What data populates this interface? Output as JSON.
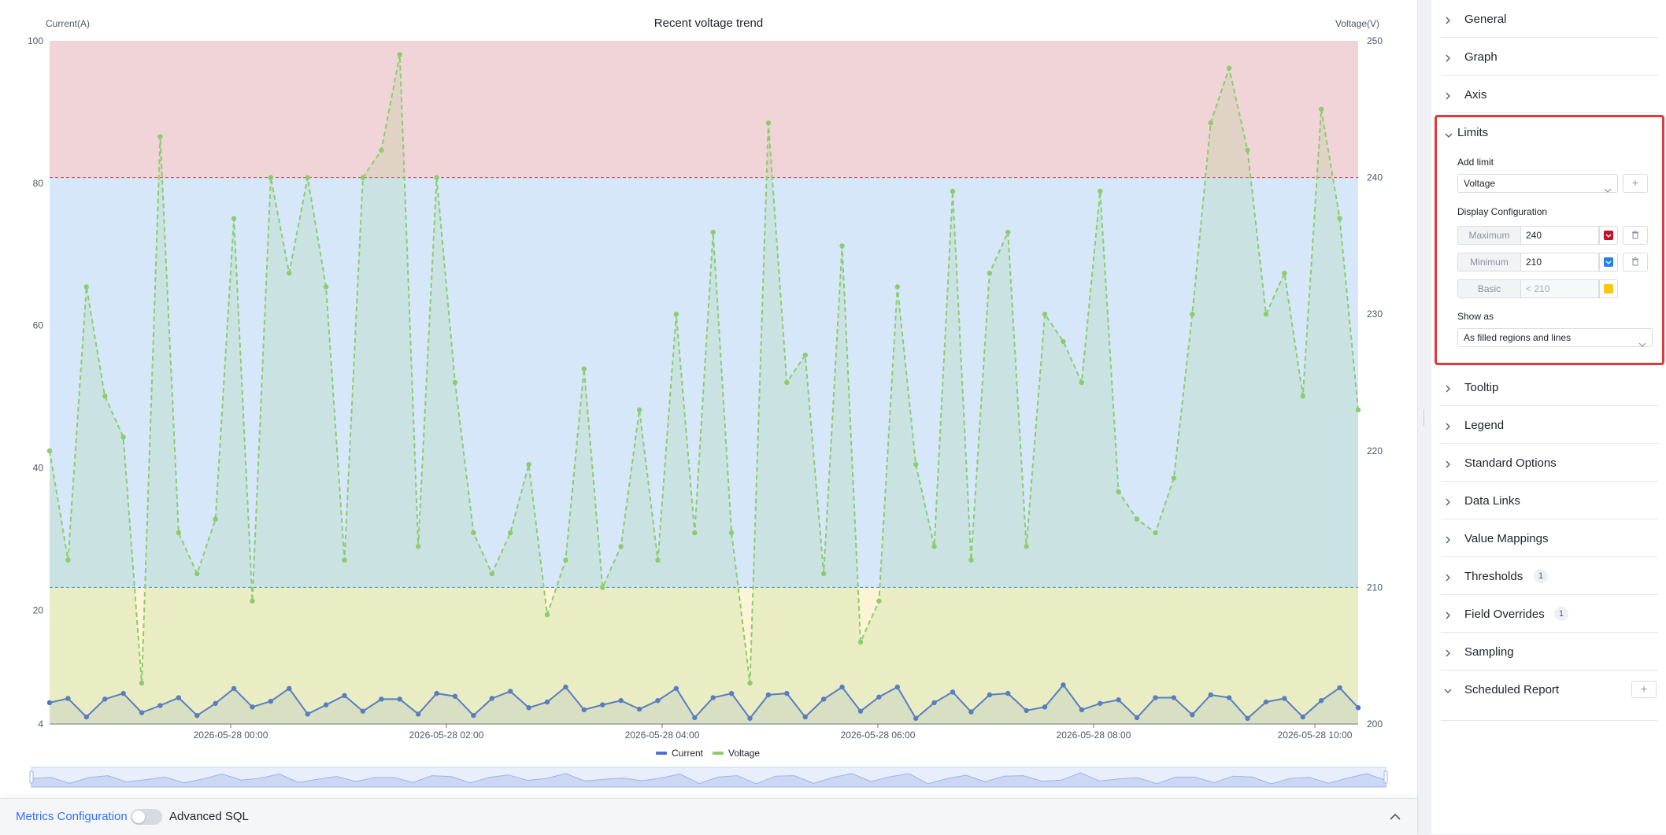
{
  "chart_data": {
    "type": "line",
    "title": "Recent voltage trend",
    "y_left_label": "Current(A)",
    "y_right_label": "Voltage(V)",
    "y_left_range": [
      4,
      100
    ],
    "y_left_ticks": [
      "4",
      "20",
      "40",
      "60",
      "80",
      "100"
    ],
    "y_right_range": [
      200,
      250
    ],
    "y_right_ticks": [
      "200",
      "210",
      "220",
      "230",
      "240",
      "250"
    ],
    "x_tick_labels": [
      "2026-05-28 00:00",
      "2026-05-28 02:00",
      "2026-05-28 04:00",
      "2026-05-28 06:00",
      "2026-05-28 08:00",
      "2026-05-28 10:00"
    ],
    "limits": {
      "max": 240,
      "min": 210
    },
    "legend_position": "bottom-center",
    "series": [
      {
        "name": "Current",
        "axis": "left",
        "color": "#4e6fd1",
        "values": [
          7,
          7.6,
          5,
          7.5,
          8.3,
          5.6,
          6.6,
          7.7,
          5.2,
          6.9,
          9,
          6.4,
          7.2,
          9,
          5.4,
          6.7,
          8,
          5.8,
          7.5,
          7.5,
          5.4,
          8.3,
          7.9,
          5.2,
          7.6,
          8.6,
          6.3,
          7.1,
          9.2,
          6,
          6.7,
          7.3,
          6.1,
          7.3,
          9,
          4.9,
          7.7,
          8.3,
          4.8,
          8.1,
          8.3,
          5,
          7.5,
          9.2,
          5.8,
          7.8,
          9.2,
          4.8,
          7,
          8.5,
          5.7,
          8.1,
          8.3,
          5.9,
          6.4,
          9.5,
          6,
          6.9,
          7.4,
          4.9,
          7.7,
          7.7,
          5.3,
          8.1,
          7.7,
          4.8,
          7.1,
          7.6,
          5,
          7.3,
          9.1,
          6.3
        ]
      },
      {
        "name": "Voltage",
        "axis": "right",
        "color": "#8ccc6c",
        "values": [
          220,
          212,
          232,
          224,
          221,
          203,
          243,
          214,
          211,
          215,
          237,
          209,
          240,
          233,
          240,
          232,
          212,
          240,
          242,
          249,
          213,
          240,
          225,
          214,
          211,
          214,
          219,
          208,
          212,
          226,
          210,
          213,
          223,
          212,
          230,
          214,
          236,
          214,
          203,
          244,
          225,
          227,
          211,
          235,
          206,
          209,
          232,
          219,
          213,
          239,
          212,
          233,
          236,
          213,
          230,
          228,
          225,
          239,
          217,
          215,
          214,
          218,
          230,
          244,
          248,
          242,
          230,
          233,
          224,
          245,
          237,
          223
        ]
      }
    ]
  },
  "bottom_bar": {
    "metrics_link": "Metrics Configuration",
    "advanced_sql": "Advanced SQL"
  },
  "settings": {
    "sections_top": [
      "General",
      "Graph",
      "Axis"
    ],
    "limits": {
      "title": "Limits",
      "add_limit_label": "Add limit",
      "add_limit_select": "Voltage",
      "add_button": "+",
      "display_config_label": "Display Configuration",
      "maximum_label": "Maximum",
      "maximum_value": "240",
      "maximum_color": "#c4102a",
      "minimum_label": "Minimum",
      "minimum_value": "210",
      "minimum_color": "#2b7de9",
      "basic_label": "Basic",
      "basic_placeholder": "< 210",
      "basic_color": "#f6c916",
      "show_as_label": "Show as",
      "show_as_value": "As filled regions and lines"
    },
    "sections_bottom": [
      {
        "title": "Tooltip"
      },
      {
        "title": "Legend"
      },
      {
        "title": "Standard Options"
      },
      {
        "title": "Data Links"
      },
      {
        "title": "Value Mappings"
      },
      {
        "title": "Thresholds",
        "badge": "1"
      },
      {
        "title": "Field Overrides",
        "badge": "1"
      },
      {
        "title": "Sampling"
      },
      {
        "title": "Scheduled Report",
        "plus": "+"
      }
    ]
  }
}
